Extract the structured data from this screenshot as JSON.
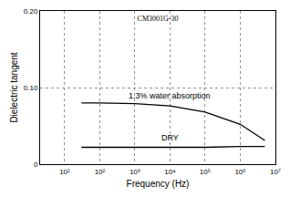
{
  "chart_data": {
    "type": "line",
    "title": "CM3001G-30",
    "x_label": "Frequency (Hz)",
    "y_label": "Dielectric tangent",
    "log": "x",
    "grid": true,
    "xlim": [
      2,
      10000000
    ],
    "xticks": [
      {
        "value": 10,
        "label": "10¹"
      },
      {
        "value": 100,
        "label": "10²"
      },
      {
        "value": 1000,
        "label": "10³"
      },
      {
        "value": 10000,
        "label": "10⁴"
      },
      {
        "value": 100000,
        "label": "10⁵"
      },
      {
        "value": 1000000,
        "label": "10⁶"
      },
      {
        "value": 10000000,
        "label": "10⁷"
      }
    ],
    "ylim": [
      0,
      0.2
    ],
    "yticks": [
      0,
      {
        "value": 0.1,
        "label": "0.10"
      },
      {
        "value": 0.2,
        "label": "0.20"
      }
    ],
    "x": [
      30,
      100,
      1000,
      10000,
      100000,
      1000000,
      5000000
    ],
    "series": [
      {
        "name": "1.3% water absorption",
        "color": "#000000",
        "values": [
          0.08,
          0.08,
          0.079,
          0.076,
          0.068,
          0.052,
          0.031
        ]
      },
      {
        "name": "DRY",
        "color": "#000000",
        "values": [
          0.022,
          0.022,
          0.022,
          0.022,
          0.022,
          0.023,
          0.023
        ]
      }
    ]
  }
}
